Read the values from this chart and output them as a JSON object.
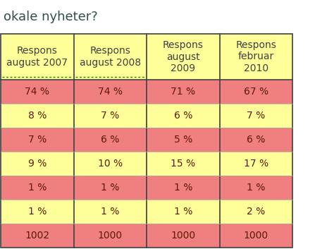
{
  "title": "okale nyheter?",
  "col_headers": [
    "Respons\naugust 2007",
    "Respons\naugust 2008",
    "Respons\naugust\n2009",
    "Respons\nfebruar\n2010"
  ],
  "rows": [
    [
      "74 %",
      "74 %",
      "71 %",
      "67 %"
    ],
    [
      "8 %",
      "7 %",
      "6 %",
      "7 %"
    ],
    [
      "7 %",
      "6 %",
      "5 %",
      "6 %"
    ],
    [
      "9 %",
      "10 %",
      "15 %",
      "17 %"
    ],
    [
      "1 %",
      "1 %",
      "1 %",
      "1 %"
    ],
    [
      "1 %",
      "1 %",
      "1 %",
      "2 %"
    ],
    [
      "1002",
      "1000",
      "1000",
      "1000"
    ]
  ],
  "row_colors": [
    "#F08080",
    "#FFFF99",
    "#F08080",
    "#FFFF99",
    "#F08080",
    "#FFFF99",
    "#F08080"
  ],
  "header_bg": "#FFFF99",
  "col_divider_color": "#404040",
  "text_color": "#5C1A00",
  "header_text_color": "#404040",
  "bg_color": "#ffffff",
  "title_color": "#2F4F4F",
  "font_size": 10,
  "header_font_size": 10
}
